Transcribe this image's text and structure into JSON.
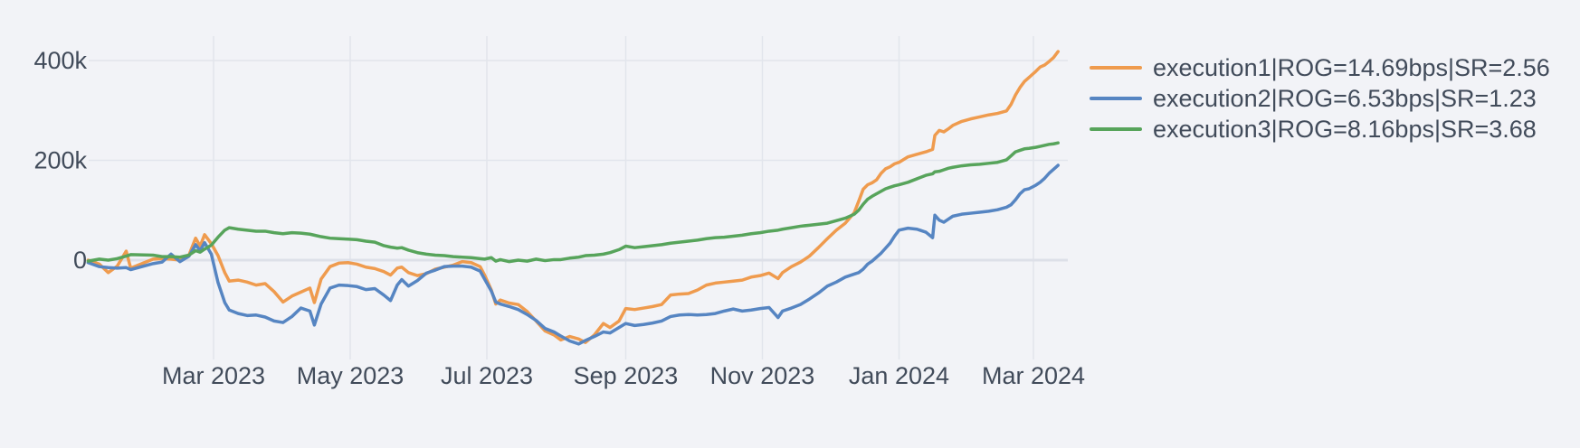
{
  "colors": {
    "background": "#F2F3F7",
    "grid": "#E2E5EC",
    "zero_line": "#DDE0E8",
    "text": "#414B5A"
  },
  "chart_data": {
    "type": "line",
    "title": "",
    "xlabel": "",
    "ylabel": "",
    "value_unit": "thousands",
    "legend_position": "right-top-outside",
    "grid": true,
    "y_axis": {
      "ticks": [
        0,
        200,
        400
      ],
      "tick_labels": [
        "0",
        "200k",
        "400k"
      ],
      "range_k": [
        -200,
        450
      ]
    },
    "x_axis": {
      "ticks": [
        {
          "date": "2023-03-01",
          "label": "Mar 2023"
        },
        {
          "date": "2023-05-01",
          "label": "May 2023"
        },
        {
          "date": "2023-07-01",
          "label": "Jul 2023"
        },
        {
          "date": "2023-09-01",
          "label": "Sep 2023"
        },
        {
          "date": "2023-11-01",
          "label": "Nov 2023"
        },
        {
          "date": "2024-01-01",
          "label": "Jan 2024"
        },
        {
          "date": "2024-03-01",
          "label": "Mar 2024"
        }
      ]
    },
    "dates": [
      "2023-01-04",
      "2023-01-09",
      "2023-01-13",
      "2023-01-17",
      "2023-01-21",
      "2023-01-23",
      "2023-02-02",
      "2023-02-06",
      "2023-02-10",
      "2023-02-14",
      "2023-02-18",
      "2023-02-21",
      "2023-02-23",
      "2023-02-25",
      "2023-02-28",
      "2023-03-03",
      "2023-03-06",
      "2023-03-08",
      "2023-03-12",
      "2023-03-16",
      "2023-03-20",
      "2023-03-24",
      "2023-03-28",
      "2023-04-01",
      "2023-04-05",
      "2023-04-09",
      "2023-04-13",
      "2023-04-15",
      "2023-04-18",
      "2023-04-22",
      "2023-04-26",
      "2023-04-30",
      "2023-05-04",
      "2023-05-08",
      "2023-05-12",
      "2023-05-16",
      "2023-05-19",
      "2023-05-22",
      "2023-05-24",
      "2023-05-27",
      "2023-05-31",
      "2023-06-04",
      "2023-06-08",
      "2023-06-12",
      "2023-06-16",
      "2023-06-20",
      "2023-06-24",
      "2023-06-28",
      "2023-06-30",
      "2023-07-03",
      "2023-07-05",
      "2023-07-07",
      "2023-07-11",
      "2023-07-15",
      "2023-07-19",
      "2023-07-23",
      "2023-07-27",
      "2023-07-31",
      "2023-08-03",
      "2023-08-07",
      "2023-08-11",
      "2023-08-14",
      "2023-08-18",
      "2023-08-22",
      "2023-08-25",
      "2023-08-29",
      "2023-09-01",
      "2023-09-05",
      "2023-09-09",
      "2023-09-13",
      "2023-09-17",
      "2023-09-21",
      "2023-09-25",
      "2023-09-29",
      "2023-10-03",
      "2023-10-07",
      "2023-10-11",
      "2023-10-15",
      "2023-10-19",
      "2023-10-23",
      "2023-10-27",
      "2023-10-31",
      "2023-11-04",
      "2023-11-08",
      "2023-11-10",
      "2023-11-14",
      "2023-11-18",
      "2023-11-22",
      "2023-11-26",
      "2023-11-30",
      "2023-12-04",
      "2023-12-08",
      "2023-12-12",
      "2023-12-14",
      "2023-12-16",
      "2023-12-18",
      "2023-12-20",
      "2023-12-22",
      "2023-12-24",
      "2023-12-26",
      "2023-12-28",
      "2023-12-30",
      "2024-01-01",
      "2024-01-05",
      "2024-01-09",
      "2024-01-13",
      "2024-01-16",
      "2024-01-17",
      "2024-01-19",
      "2024-01-21",
      "2024-01-23",
      "2024-01-25",
      "2024-01-29",
      "2024-02-02",
      "2024-02-06",
      "2024-02-10",
      "2024-02-14",
      "2024-02-18",
      "2024-02-20",
      "2024-02-22",
      "2024-02-24",
      "2024-02-26",
      "2024-02-28",
      "2024-03-02",
      "2024-03-04",
      "2024-03-06",
      "2024-03-08",
      "2024-03-10",
      "2024-03-12"
    ],
    "series": [
      {
        "key": "execution1",
        "name": "execution1|ROG=14.69bps|SR=2.56",
        "color": "#EF9B4E",
        "values_k": [
          0,
          -8,
          -25,
          -12,
          18,
          -16,
          2,
          3,
          2,
          0,
          10,
          44,
          28,
          51,
          33,
          9,
          -25,
          -42,
          -40,
          -44,
          -50,
          -47,
          -63,
          -84,
          -72,
          -64,
          -56,
          -85,
          -38,
          -13,
          -6,
          -5,
          -8,
          -14,
          -17,
          -23,
          -30,
          -16,
          -14,
          -25,
          -31,
          -27,
          -18,
          -14,
          -10,
          -3,
          -5,
          -13,
          -30,
          -60,
          -88,
          -80,
          -86,
          -89,
          -103,
          -122,
          -142,
          -150,
          -160,
          -153,
          -158,
          -165,
          -150,
          -127,
          -135,
          -122,
          -97,
          -99,
          -96,
          -93,
          -89,
          -70,
          -68,
          -67,
          -60,
          -50,
          -46,
          -44,
          -42,
          -40,
          -34,
          -31,
          -26,
          -37,
          -25,
          -13,
          -4,
          8,
          25,
          43,
          60,
          74,
          95,
          118,
          142,
          151,
          155,
          161,
          174,
          183,
          187,
          193,
          196,
          207,
          212,
          217,
          222,
          250,
          260,
          257,
          263,
          270,
          278,
          283,
          287,
          291,
          294,
          299,
          312,
          331,
          346,
          358,
          366,
          378,
          387,
          391,
          398,
          406,
          418
        ]
      },
      {
        "key": "execution2",
        "name": "execution2|ROG=6.53bps|SR=1.23",
        "color": "#5685C2",
        "values_k": [
          -5,
          -13,
          -15,
          -16,
          -15,
          -19,
          -7,
          -4,
          12,
          -3,
          8,
          31,
          19,
          35,
          12,
          -45,
          -85,
          -100,
          -107,
          -111,
          -110,
          -114,
          -122,
          -125,
          -113,
          -96,
          -102,
          -130,
          -88,
          -56,
          -50,
          -51,
          -53,
          -59,
          -57,
          -70,
          -81,
          -50,
          -39,
          -52,
          -41,
          -26,
          -20,
          -13,
          -12,
          -12,
          -14,
          -22,
          -38,
          -62,
          -84,
          -88,
          -93,
          -99,
          -109,
          -121,
          -137,
          -144,
          -152,
          -162,
          -168,
          -161,
          -153,
          -144,
          -146,
          -135,
          -127,
          -131,
          -129,
          -126,
          -122,
          -113,
          -110,
          -109,
          -110,
          -109,
          -107,
          -102,
          -98,
          -102,
          -100,
          -97,
          -95,
          -115,
          -102,
          -96,
          -89,
          -78,
          -66,
          -52,
          -44,
          -34,
          -28,
          -25,
          -18,
          -8,
          -2,
          6,
          14,
          24,
          34,
          48,
          60,
          64,
          62,
          56,
          45,
          90,
          80,
          76,
          82,
          88,
          92,
          94,
          96,
          98,
          101,
          106,
          111,
          121,
          133,
          141,
          143,
          150,
          156,
          164,
          174,
          182,
          190
        ]
      },
      {
        "key": "execution3",
        "name": "execution3|ROG=8.16bps|SR=3.68",
        "color": "#57A45B",
        "values_k": [
          -2,
          2,
          0,
          3,
          8,
          11,
          10,
          7,
          7,
          6,
          10,
          19,
          16,
          22,
          30,
          46,
          60,
          65,
          62,
          60,
          58,
          58,
          55,
          53,
          55,
          54,
          52,
          50,
          47,
          44,
          43,
          42,
          41,
          38,
          36,
          29,
          26,
          24,
          25,
          20,
          15,
          12,
          10,
          9,
          7,
          6,
          5,
          3,
          2,
          5,
          -2,
          1,
          -3,
          0,
          -2,
          2,
          -1,
          1,
          1,
          4,
          6,
          9,
          10,
          12,
          15,
          21,
          28,
          25,
          27,
          29,
          31,
          34,
          36,
          38,
          40,
          43,
          45,
          46,
          48,
          50,
          53,
          55,
          58,
          60,
          62,
          65,
          68,
          70,
          72,
          74,
          79,
          84,
          92,
          100,
          112,
          122,
          128,
          133,
          138,
          143,
          146,
          149,
          151,
          156,
          163,
          170,
          173,
          177,
          178,
          181,
          184,
          186,
          189,
          191,
          192,
          194,
          196,
          201,
          209,
          217,
          220,
          223,
          224,
          226,
          228,
          230,
          232,
          233,
          235
        ]
      }
    ]
  }
}
